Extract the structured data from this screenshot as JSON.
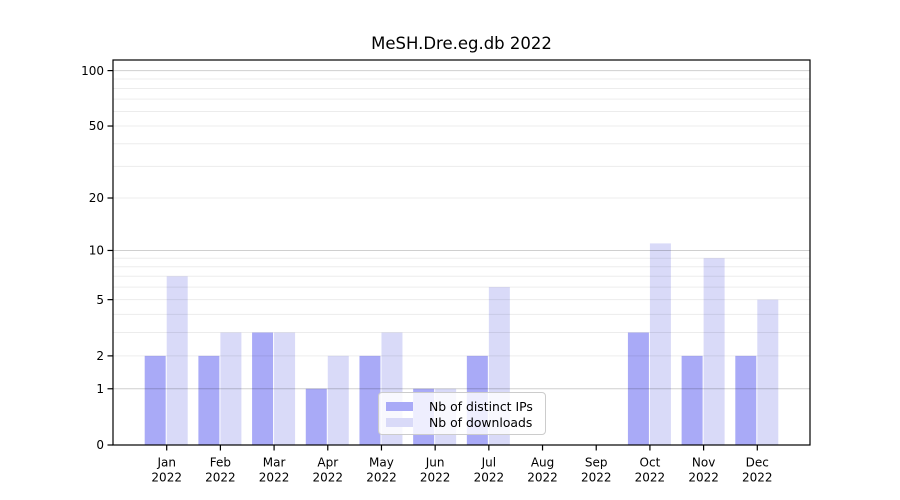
{
  "chart_data": {
    "type": "bar",
    "title": "MeSH.Dre.eg.db 2022",
    "categories": [
      "Jan",
      "Feb",
      "Mar",
      "Apr",
      "May",
      "Jun",
      "Jul",
      "Aug",
      "Sep",
      "Oct",
      "Nov",
      "Dec"
    ],
    "x_tick_line2": "2022",
    "series": [
      {
        "name": "Nb of distinct IPs",
        "color": "#a9aaf7",
        "values": [
          2,
          2,
          3,
          1,
          2,
          1,
          2,
          0,
          0,
          3,
          2,
          2
        ]
      },
      {
        "name": "Nb of downloads",
        "color": "#d9daf8",
        "values": [
          7,
          3,
          3,
          2,
          3,
          1,
          6,
          0,
          0,
          11,
          9,
          5
        ]
      }
    ],
    "xlabel": "",
    "ylabel": "",
    "y_ticks": [
      0,
      1,
      2,
      5,
      10,
      20,
      50,
      100
    ],
    "y_scale": "log10(1+value)",
    "ylim": [
      0,
      115
    ],
    "grid": "on",
    "grid_major_values": [
      1,
      10,
      100
    ],
    "grid_minor_values": [
      2,
      3,
      4,
      5,
      6,
      7,
      8,
      9,
      20,
      30,
      40,
      50,
      60,
      70,
      80,
      90
    ],
    "legend_position": "lower-center"
  },
  "colors": {
    "axis": "#000000",
    "grid_major": "rgba(0,0,0,0.19)",
    "grid_minor": "rgba(0,0,0,0.075)",
    "legend_border": "#cccccc",
    "legend_background": "rgba(255,255,255,0.8)",
    "background": "#ffffff"
  }
}
